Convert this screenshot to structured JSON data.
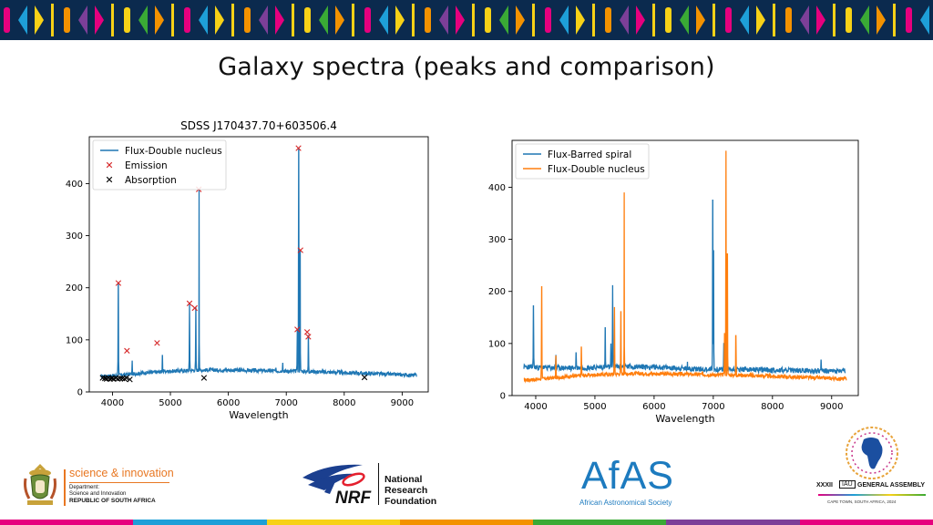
{
  "slide": {
    "title": "Galaxy spectra (peaks and comparison)"
  },
  "colors": {
    "banner_bg": "#0b2a4e",
    "series_blue": "#1f77b4",
    "series_orange": "#ff7f0e",
    "emission_marker": "#d62728",
    "absorption_marker": "#000000",
    "bottom_strip": [
      "#e6007e",
      "#1e9fd8",
      "#f7d117",
      "#f39200",
      "#3aaa35",
      "#7c3f98",
      "#e6007e"
    ]
  },
  "chart_data": [
    {
      "type": "line",
      "title": "SDSS J170437.70+603506.4",
      "xlabel": "Wavelength",
      "ylabel": "",
      "xlim": [
        3600,
        9450
      ],
      "ylim": [
        0,
        490
      ],
      "xticks": [
        4000,
        5000,
        6000,
        7000,
        8000,
        9000
      ],
      "yticks": [
        0,
        100,
        200,
        300,
        400
      ],
      "legend_position": "top-left",
      "series": [
        {
          "name": "Flux-Double nucleus",
          "color": "#1f77b4",
          "style": "line",
          "baseline": [
            [
              3800,
              30
            ],
            [
              4000,
              31
            ],
            [
              4500,
              36
            ],
            [
              5000,
              40
            ],
            [
              5500,
              42
            ],
            [
              6000,
              42
            ],
            [
              6500,
              41
            ],
            [
              7000,
              40
            ],
            [
              7500,
              39
            ],
            [
              8000,
              37
            ],
            [
              8500,
              35
            ],
            [
              9000,
              33
            ],
            [
              9250,
              32
            ]
          ],
          "peaks": [
            [
              4102,
              209
            ],
            [
              4340,
              60
            ],
            [
              4861,
              70
            ],
            [
              5330,
              170
            ],
            [
              5440,
              161
            ],
            [
              5495,
              389
            ],
            [
              6940,
              55
            ],
            [
              7190,
              120
            ],
            [
              7215,
              468
            ],
            [
              7240,
              272
            ],
            [
              7380,
              108
            ]
          ]
        },
        {
          "name": "Emission",
          "color": "#d62728",
          "style": "marker-x",
          "points": [
            [
              4102,
              209
            ],
            [
              4250,
              79
            ],
            [
              4770,
              94
            ],
            [
              5330,
              170
            ],
            [
              5420,
              161
            ],
            [
              5490,
              389
            ],
            [
              7190,
              120
            ],
            [
              7210,
              468
            ],
            [
              7245,
              272
            ],
            [
              7360,
              115
            ],
            [
              7380,
              106
            ]
          ]
        },
        {
          "name": "Absorption",
          "color": "#000000",
          "style": "marker-x",
          "points": [
            [
              3830,
              27
            ],
            [
              3870,
              26
            ],
            [
              3900,
              25
            ],
            [
              3930,
              27
            ],
            [
              3960,
              25
            ],
            [
              3990,
              26
            ],
            [
              4020,
              25
            ],
            [
              4060,
              27
            ],
            [
              4090,
              25
            ],
            [
              4130,
              26
            ],
            [
              4170,
              26
            ],
            [
              4210,
              25
            ],
            [
              4240,
              27
            ],
            [
              4300,
              24
            ],
            [
              5580,
              27
            ],
            [
              8350,
              28
            ]
          ]
        }
      ]
    },
    {
      "type": "line",
      "title": "",
      "xlabel": "Wavelength",
      "ylabel": "",
      "xlim": [
        3600,
        9450
      ],
      "ylim": [
        0,
        490
      ],
      "xticks": [
        4000,
        5000,
        6000,
        7000,
        8000,
        9000
      ],
      "yticks": [
        0,
        100,
        200,
        300,
        400
      ],
      "legend_position": "top-left",
      "series": [
        {
          "name": "Flux-Barred spiral",
          "color": "#1f77b4",
          "baseline": [
            [
              3800,
              55
            ],
            [
              4000,
              54
            ],
            [
              4500,
              53
            ],
            [
              5000,
              54
            ],
            [
              5500,
              56
            ],
            [
              6000,
              55
            ],
            [
              6500,
              52
            ],
            [
              7000,
              50
            ],
            [
              7500,
              50
            ],
            [
              8000,
              49
            ],
            [
              8500,
              48
            ],
            [
              9000,
              47
            ],
            [
              9230,
              47
            ]
          ],
          "peaks": [
            [
              3960,
              172
            ],
            [
              4102,
              80
            ],
            [
              4340,
              78
            ],
            [
              4680,
              82
            ],
            [
              5175,
              130
            ],
            [
              5270,
              100
            ],
            [
              5300,
              212
            ],
            [
              6563,
              65
            ],
            [
              6990,
              375
            ],
            [
              7005,
              278
            ],
            [
              7180,
              100
            ],
            [
              8820,
              68
            ]
          ]
        },
        {
          "name": "Flux-Double nucleus",
          "color": "#ff7f0e",
          "baseline": [
            [
              3800,
              30
            ],
            [
              4000,
              31
            ],
            [
              4500,
              36
            ],
            [
              5000,
              40
            ],
            [
              5500,
              42
            ],
            [
              6000,
              42
            ],
            [
              6500,
              41
            ],
            [
              7000,
              40
            ],
            [
              7500,
              39
            ],
            [
              8000,
              37
            ],
            [
              8500,
              35
            ],
            [
              9000,
              33
            ],
            [
              9250,
              32
            ]
          ],
          "peaks": [
            [
              4102,
              209
            ],
            [
              4340,
              77
            ],
            [
              4770,
              93
            ],
            [
              5330,
              170
            ],
            [
              5440,
              161
            ],
            [
              5495,
              390
            ],
            [
              7190,
              120
            ],
            [
              7215,
              470
            ],
            [
              7240,
              272
            ],
            [
              7380,
              115
            ]
          ]
        }
      ]
    }
  ],
  "logos": {
    "dsi_line1": "science & innovation",
    "dsi_line2": "Department:",
    "dsi_line3": "Science and Innovation",
    "dsi_line4": "REPUBLIC OF SOUTH AFRICA",
    "nrf_mark": "NRF",
    "nrf_line1": "National",
    "nrf_line2": "Research",
    "nrf_line3": "Foundation",
    "afas_mark": "AfAS",
    "afas_sub": "African Astronomical Society",
    "iau_roman": "XXXII",
    "iau_badge": "IAU",
    "iau_title": "GENERAL ASSEMBLY",
    "iau_sub": "CAPE TOWN, SOUTH AFRICA, 2024"
  }
}
